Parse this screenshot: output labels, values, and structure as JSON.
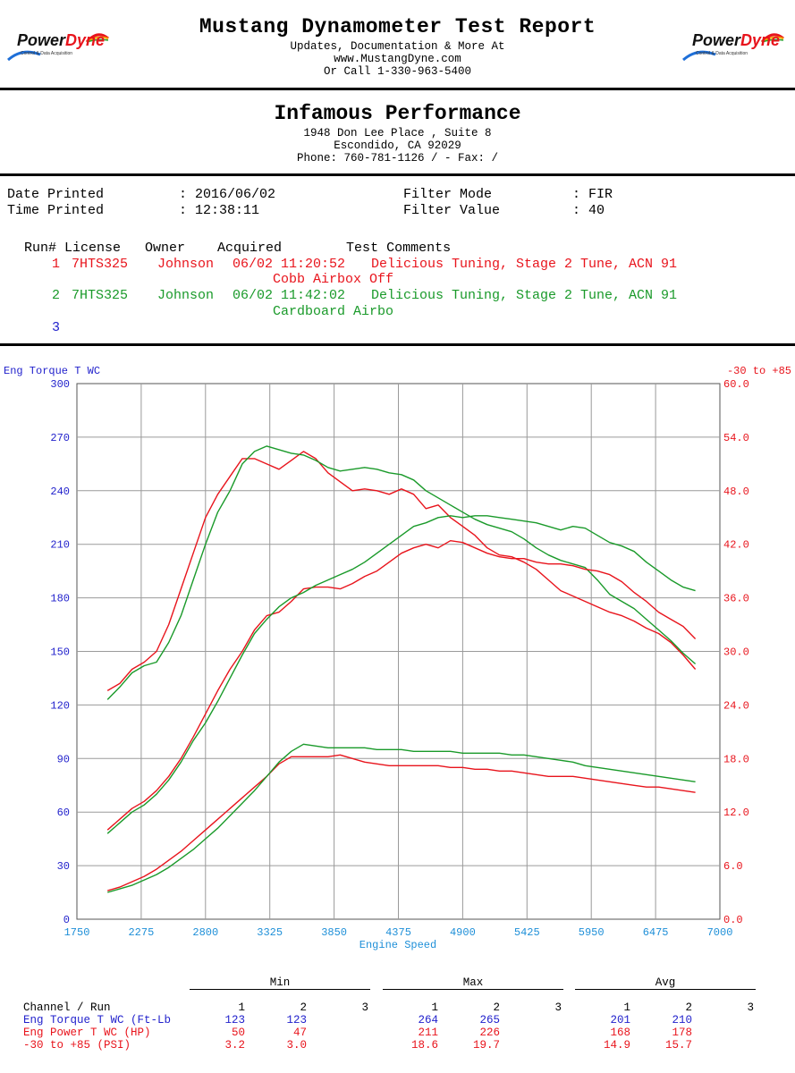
{
  "header": {
    "title": "Mustang Dynamometer Test Report",
    "line1": "Updates, Documentation & More At",
    "line2": "www.MustangDyne.com",
    "line3": "Or Call 1-330-963-5400",
    "logo_left": {
      "brand1": "Power",
      "brand2": "Dyne",
      "tagline": "Control & Data Acquisition"
    },
    "logo_right": {
      "brand1": "Power",
      "brand2": "Dyne",
      "tagline": "Control & Data Acquisition"
    }
  },
  "shop": {
    "name": "Infamous Performance",
    "address1": "1948 Don Lee Place , Suite 8",
    "address2": "Escondido, CA  92029",
    "phone": "Phone: 760-781-1126 /  - Fax:  /"
  },
  "meta": {
    "date_label": "Date Printed",
    "date_value": ": 2016/06/02",
    "time_label": "Time Printed",
    "time_value": ": 12:38:11",
    "filter_mode_label": "Filter Mode",
    "filter_mode_value": ": FIR",
    "filter_value_label": "Filter Value",
    "filter_value_value": ": 40"
  },
  "runs": {
    "header": "Run# License   Owner    Acquired        Test Comments",
    "rows": [
      {
        "num": "1",
        "license": "7HTS325",
        "owner": "Johnson",
        "acquired": "06/02 11:20:52",
        "comment1": "Delicious Tuning, Stage 2 Tune, ACN 91",
        "comment2": "Cobb Airbox Off",
        "color": "#e8141c"
      },
      {
        "num": "2",
        "license": "7HTS325",
        "owner": "Johnson",
        "acquired": "06/02 11:42:02",
        "comment1": "Delicious Tuning, Stage 2 Tune, ACN 91",
        "comment2": "Cardboard Airbo",
        "color": "#1a9a2a"
      },
      {
        "num": "3",
        "license": "",
        "owner": "",
        "acquired": "",
        "comment1": "",
        "comment2": "",
        "color": "#2222cc"
      }
    ]
  },
  "chart_data": {
    "type": "line",
    "xlabel": "Engine Speed",
    "ylabel_left": "Eng Torque T WC",
    "ylabel_right": "-30 to +85",
    "xlim": [
      1750,
      7000
    ],
    "ylim_left": [
      0,
      300
    ],
    "ylim_right": [
      0,
      60
    ],
    "xticks": [
      1750,
      2275,
      2800,
      3325,
      3850,
      4375,
      4900,
      5425,
      5950,
      6475,
      7000
    ],
    "yticks_left": [
      0,
      30,
      60,
      90,
      120,
      150,
      180,
      210,
      240,
      270,
      300
    ],
    "yticks_right": [
      "0.0",
      "6.0",
      "12.0",
      "18.0",
      "24.0",
      "30.0",
      "36.0",
      "42.0",
      "48.0",
      "54.0",
      "60.0"
    ],
    "grid": true,
    "colors": {
      "run1": "#e8141c",
      "run2": "#1a9a2a",
      "axis_left": "#2222cc",
      "axis_right": "#e8141c",
      "xaxis": "#1e8fd8"
    },
    "series": [
      {
        "run": "1",
        "axis": "left",
        "x": [
          2000,
          2100,
          2200,
          2300,
          2400,
          2500,
          2600,
          2700,
          2800,
          2900,
          3000,
          3100,
          3200,
          3300,
          3400,
          3500,
          3600,
          3700,
          3800,
          3900,
          4000,
          4100,
          4200,
          4300,
          4400,
          4500,
          4600,
          4700,
          4800,
          4900,
          5000,
          5100,
          5200,
          5300,
          5400,
          5500,
          5600,
          5700,
          5800,
          5900,
          6000,
          6100,
          6200,
          6300,
          6400,
          6500,
          6600,
          6700,
          6800
        ],
        "y": [
          128,
          132,
          140,
          144,
          150,
          165,
          185,
          205,
          225,
          238,
          248,
          258,
          258,
          255,
          252,
          257,
          262,
          258,
          250,
          245,
          240,
          241,
          240,
          238,
          241,
          238,
          230,
          232,
          225,
          220,
          215,
          208,
          204,
          203,
          200,
          196,
          190,
          184,
          181,
          178,
          175,
          172,
          170,
          167,
          163,
          160,
          155,
          148,
          140
        ]
      },
      {
        "run": "2",
        "axis": "left",
        "x": [
          2000,
          2100,
          2200,
          2300,
          2400,
          2500,
          2600,
          2700,
          2800,
          2900,
          3000,
          3100,
          3200,
          3300,
          3400,
          3500,
          3600,
          3700,
          3800,
          3900,
          4000,
          4100,
          4200,
          4300,
          4400,
          4500,
          4600,
          4700,
          4800,
          4900,
          5000,
          5100,
          5200,
          5300,
          5400,
          5500,
          5600,
          5700,
          5800,
          5900,
          6000,
          6100,
          6200,
          6300,
          6400,
          6500,
          6600,
          6700,
          6800
        ],
        "y": [
          123,
          130,
          138,
          142,
          144,
          155,
          170,
          190,
          210,
          228,
          240,
          255,
          262,
          265,
          263,
          261,
          260,
          257,
          253,
          251,
          252,
          253,
          252,
          250,
          249,
          246,
          240,
          236,
          232,
          228,
          224,
          221,
          219,
          217,
          213,
          208,
          204,
          201,
          199,
          197,
          190,
          182,
          178,
          174,
          168,
          162,
          156,
          149,
          143
        ]
      },
      {
        "run": "1",
        "axis": "left",
        "x": [
          2000,
          2100,
          2200,
          2300,
          2400,
          2500,
          2600,
          2700,
          2800,
          2900,
          3000,
          3100,
          3200,
          3300,
          3400,
          3500,
          3600,
          3700,
          3800,
          3900,
          4000,
          4100,
          4200,
          4300,
          4400,
          4500,
          4600,
          4700,
          4800,
          4900,
          5000,
          5100,
          5200,
          5300,
          5400,
          5500,
          5600,
          5700,
          5800,
          5900,
          6000,
          6100,
          6200,
          6300,
          6400,
          6500,
          6600,
          6700,
          6800
        ],
        "y": [
          50,
          56,
          62,
          66,
          72,
          80,
          90,
          102,
          115,
          128,
          140,
          150,
          162,
          170,
          172,
          178,
          185,
          186,
          186,
          185,
          188,
          192,
          195,
          200,
          205,
          208,
          210,
          208,
          212,
          211,
          208,
          205,
          203,
          202,
          202,
          200,
          199,
          199,
          198,
          196,
          195,
          193,
          189,
          183,
          178,
          172,
          168,
          164,
          157
        ]
      },
      {
        "run": "2",
        "axis": "left",
        "x": [
          2000,
          2100,
          2200,
          2300,
          2400,
          2500,
          2600,
          2700,
          2800,
          2900,
          3000,
          3100,
          3200,
          3300,
          3400,
          3500,
          3600,
          3700,
          3800,
          3900,
          4000,
          4100,
          4200,
          4300,
          4400,
          4500,
          4600,
          4700,
          4800,
          4900,
          5000,
          5100,
          5200,
          5300,
          5400,
          5500,
          5600,
          5700,
          5800,
          5900,
          6000,
          6100,
          6200,
          6300,
          6400,
          6500,
          6600,
          6700,
          6800
        ],
        "y": [
          48,
          54,
          60,
          64,
          70,
          78,
          88,
          100,
          110,
          122,
          135,
          148,
          160,
          168,
          175,
          180,
          183,
          187,
          190,
          193,
          196,
          200,
          205,
          210,
          215,
          220,
          222,
          225,
          226,
          225,
          226,
          226,
          225,
          224,
          223,
          222,
          220,
          218,
          220,
          219,
          215,
          211,
          209,
          206,
          200,
          195,
          190,
          186,
          184
        ]
      },
      {
        "run": "1",
        "axis": "left",
        "x": [
          2000,
          2100,
          2200,
          2300,
          2400,
          2500,
          2600,
          2700,
          2800,
          2900,
          3000,
          3100,
          3200,
          3300,
          3400,
          3500,
          3600,
          3700,
          3800,
          3900,
          4000,
          4100,
          4200,
          4300,
          4400,
          4500,
          4600,
          4700,
          4800,
          4900,
          5000,
          5100,
          5200,
          5300,
          5400,
          5500,
          5600,
          5700,
          5800,
          5900,
          6000,
          6100,
          6200,
          6300,
          6400,
          6500,
          6600,
          6700,
          6800
        ],
        "y": [
          16,
          18,
          21,
          24,
          28,
          33,
          38,
          44,
          50,
          56,
          62,
          68,
          74,
          80,
          87,
          91,
          91,
          91,
          91,
          92,
          90,
          88,
          87,
          86,
          86,
          86,
          86,
          86,
          85,
          85,
          84,
          84,
          83,
          83,
          82,
          81,
          80,
          80,
          80,
          79,
          78,
          77,
          76,
          75,
          74,
          74,
          73,
          72,
          71
        ]
      },
      {
        "run": "2",
        "axis": "left",
        "x": [
          2000,
          2100,
          2200,
          2300,
          2400,
          2500,
          2600,
          2700,
          2800,
          2900,
          3000,
          3100,
          3200,
          3300,
          3400,
          3500,
          3600,
          3700,
          3800,
          3900,
          4000,
          4100,
          4200,
          4300,
          4400,
          4500,
          4600,
          4700,
          4800,
          4900,
          5000,
          5100,
          5200,
          5300,
          5400,
          5500,
          5600,
          5700,
          5800,
          5900,
          6000,
          6100,
          6200,
          6300,
          6400,
          6500,
          6600,
          6700,
          6800
        ],
        "y": [
          15,
          17,
          19,
          22,
          25,
          29,
          34,
          39,
          45,
          51,
          58,
          65,
          72,
          80,
          88,
          94,
          98,
          97,
          96,
          96,
          96,
          96,
          95,
          95,
          95,
          94,
          94,
          94,
          94,
          93,
          93,
          93,
          93,
          92,
          92,
          91,
          90,
          89,
          88,
          86,
          85,
          84,
          83,
          82,
          81,
          80,
          79,
          78,
          77
        ]
      }
    ]
  },
  "stats": {
    "group_min": "Min",
    "group_max": "Max",
    "group_avg": "Avg",
    "col_header": "Channel / Run",
    "run_labels": [
      "1",
      "2",
      "3"
    ],
    "rows": [
      {
        "label": "Eng Torque T WC (Ft-Lb",
        "min": [
          "123",
          "123",
          ""
        ],
        "max": [
          "264",
          "265",
          ""
        ],
        "avg": [
          "201",
          "210",
          ""
        ],
        "color": "#2222cc"
      },
      {
        "label": "Eng Power T WC (HP)",
        "min": [
          "50",
          "47",
          ""
        ],
        "max": [
          "211",
          "226",
          ""
        ],
        "avg": [
          "168",
          "178",
          ""
        ],
        "color": "#e8141c"
      },
      {
        "label": "-30 to +85 (PSI)",
        "min": [
          "3.2",
          "3.0",
          ""
        ],
        "max": [
          "18.6",
          "19.7",
          ""
        ],
        "avg": [
          "14.9",
          "15.7",
          ""
        ],
        "color": "#e8141c"
      }
    ]
  }
}
